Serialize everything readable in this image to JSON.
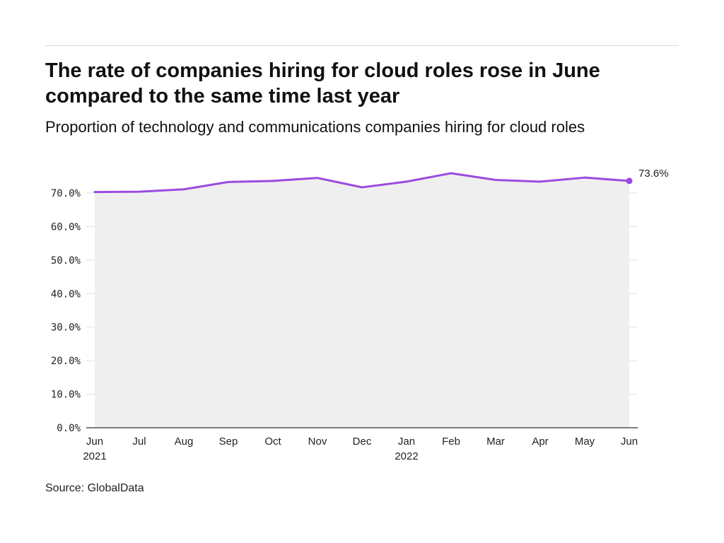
{
  "title": "The rate of companies hiring for cloud roles rose in June compared to the same time last year",
  "subtitle": "Proportion of technology and communications companies hiring for cloud roles",
  "source": "Source: GlobalData",
  "colors": {
    "line": "#9b4be0",
    "area": "#efefef",
    "grid": "#e0e0e0",
    "axis": "#333333"
  },
  "chart_data": {
    "type": "area",
    "x": [
      "Jun 2021",
      "Jul 2021",
      "Aug 2021",
      "Sep 2021",
      "Oct 2021",
      "Nov 2021",
      "Dec 2021",
      "Jan 2022",
      "Feb 2022",
      "Mar 2022",
      "Apr 2022",
      "May 2022",
      "Jun 2022"
    ],
    "x_tick_labels": [
      [
        "Jun",
        "2021"
      ],
      [
        "Jul"
      ],
      [
        "Aug"
      ],
      [
        "Sep"
      ],
      [
        "Oct"
      ],
      [
        "Nov"
      ],
      [
        "Dec"
      ],
      [
        "Jan",
        "2022"
      ],
      [
        "Feb"
      ],
      [
        "Mar"
      ],
      [
        "Apr"
      ],
      [
        "May"
      ],
      [
        "Jun"
      ]
    ],
    "series": [
      {
        "values": [
          70.3,
          70.4,
          71.1,
          73.3,
          73.6,
          74.5,
          71.7,
          73.4,
          75.9,
          73.9,
          73.4,
          74.6,
          73.6
        ]
      }
    ],
    "ylim": [
      0,
      70
    ],
    "y_ticks": [
      0,
      10,
      20,
      30,
      40,
      50,
      60,
      70
    ],
    "y_tick_labels": [
      "0.0%",
      "10.0%",
      "20.0%",
      "30.0%",
      "40.0%",
      "50.0%",
      "60.0%",
      "70.0%"
    ],
    "end_label": "73.6%",
    "xlabel": "",
    "ylabel": "",
    "grid": true
  }
}
